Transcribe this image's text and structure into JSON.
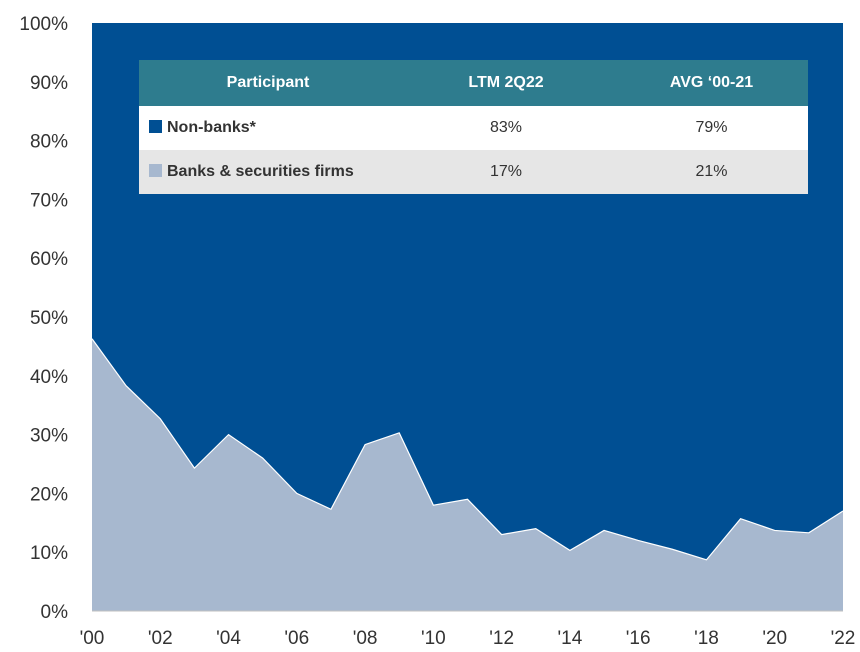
{
  "chart_data": {
    "type": "area",
    "stacked": true,
    "percent_scale": true,
    "x_tick_labels": [
      "'00",
      "'02",
      "'04",
      "'06",
      "'08",
      "'10",
      "'12",
      "'14",
      "'16",
      "'18",
      "'20",
      "'22"
    ],
    "y_tick_labels": [
      "0%",
      "10%",
      "20%",
      "30%",
      "40%",
      "50%",
      "60%",
      "70%",
      "80%",
      "90%",
      "100%"
    ],
    "ylim": [
      0,
      100
    ],
    "xlim": [
      2000,
      2022
    ],
    "grid": false,
    "series": [
      {
        "name": "Banks & securities firms",
        "color": "#a7b8cf",
        "x": [
          2000,
          2001,
          2002,
          2003,
          2004,
          2005,
          2006,
          2007,
          2008,
          2009,
          2010,
          2011,
          2012,
          2013,
          2014,
          2015,
          2016,
          2017,
          2018,
          2019,
          2020,
          2021,
          2022
        ],
        "values": [
          46.3,
          38.3,
          32.7,
          24.3,
          30.0,
          26.0,
          20.0,
          17.3,
          28.3,
          30.3,
          18.0,
          19.0,
          13.0,
          14.0,
          10.3,
          13.7,
          12.0,
          10.5,
          8.7,
          15.7,
          13.7,
          13.3,
          17.0
        ]
      },
      {
        "name": "Non-banks*",
        "color": "#004f93",
        "x": [
          2000,
          2001,
          2002,
          2003,
          2004,
          2005,
          2006,
          2007,
          2008,
          2009,
          2010,
          2011,
          2012,
          2013,
          2014,
          2015,
          2016,
          2017,
          2018,
          2019,
          2020,
          2021,
          2022
        ],
        "values": [
          53.7,
          61.7,
          67.3,
          75.7,
          70.0,
          74.0,
          80.0,
          82.7,
          71.7,
          69.7,
          82.0,
          81.0,
          87.0,
          86.0,
          89.7,
          86.3,
          88.0,
          89.5,
          91.3,
          84.3,
          86.3,
          86.7,
          83.0
        ]
      }
    ],
    "table": {
      "headers": [
        "Participant",
        "LTM 2Q22",
        "AVG ‘00-21"
      ],
      "rows": [
        {
          "name": "Non-banks*",
          "color": "#004f93",
          "ltm": "83%",
          "avg": "79%"
        },
        {
          "name": "Banks & securities firms",
          "color": "#a7b8cf",
          "ltm": "17%",
          "avg": "21%"
        }
      ]
    }
  }
}
